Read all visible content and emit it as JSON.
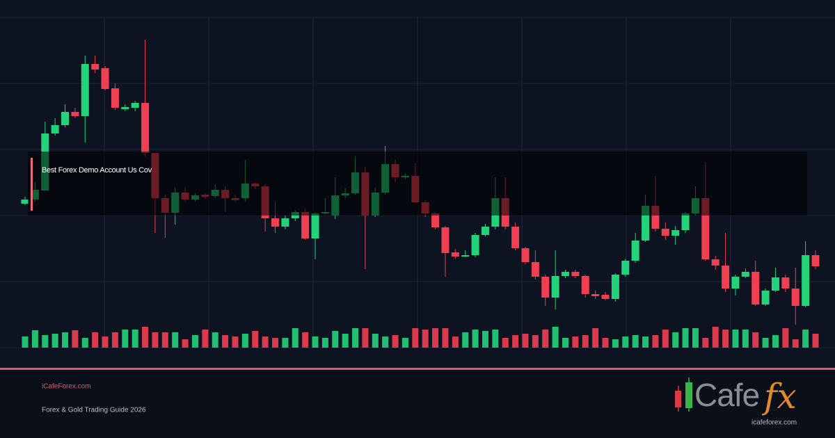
{
  "chart_data": {
    "type": "candlestick",
    "overlay_text": "Best Forex Demo Account Us Cov",
    "up_color": "#22d37a",
    "down_color": "#ef3f52",
    "ylim": [
      0,
      475
    ],
    "yticks": [
      0,
      95,
      190,
      285,
      380,
      475
    ],
    "grid": true,
    "open": [
      207,
      213,
      226,
      308,
      320,
      339,
      333,
      408,
      402,
      373,
      343,
      345,
      352,
      280,
      215,
      194,
      223,
      213,
      220,
      218,
      227,
      215,
      215,
      236,
      232,
      186,
      174,
      186,
      195,
      157,
      193,
      190,
      219,
      222,
      252,
      190,
      223,
      264,
      245,
      247,
      209,
      193,
      173,
      137,
      131,
      133,
      162,
      174,
      215,
      174,
      143,
      123,
      102,
      72,
      103,
      109,
      103,
      77,
      76,
      70,
      105,
      125,
      154,
      204,
      171,
      161,
      169,
      193,
      215,
      127,
      118,
      85,
      102,
      109,
      62,
      82,
      101,
      85,
      60,
      133
    ],
    "high": [
      217,
      238,
      325,
      330,
      350,
      345,
      420,
      420,
      405,
      380,
      350,
      355,
      443,
      280,
      220,
      230,
      230,
      222,
      222,
      235,
      232,
      220,
      270,
      238,
      235,
      210,
      190,
      198,
      200,
      195,
      215,
      245,
      230,
      275,
      260,
      230,
      290,
      270,
      250,
      265,
      212,
      195,
      175,
      142,
      140,
      165,
      178,
      245,
      245,
      180,
      145,
      140,
      105,
      140,
      112,
      112,
      105,
      82,
      80,
      107,
      128,
      165,
      220,
      247,
      180,
      175,
      195,
      232,
      267,
      132,
      165,
      105,
      114,
      125,
      85,
      115,
      105,
      115,
      153,
      140
    ],
    "low": [
      205,
      210,
      226,
      305,
      317,
      330,
      295,
      395,
      370,
      342,
      340,
      340,
      275,
      165,
      158,
      177,
      210,
      210,
      214,
      215,
      195,
      210,
      210,
      228,
      167,
      165,
      170,
      182,
      155,
      127,
      192,
      185,
      215,
      220,
      113,
      188,
      220,
      238,
      242,
      208,
      188,
      170,
      102,
      128,
      130,
      130,
      160,
      170,
      170,
      140,
      120,
      98,
      60,
      55,
      100,
      100,
      72,
      70,
      68,
      66,
      102,
      122,
      152,
      167,
      155,
      148,
      165,
      190,
      125,
      112,
      80,
      75,
      100,
      60,
      60,
      80,
      80,
      33,
      58,
      113
    ],
    "close": [
      213,
      227,
      308,
      320,
      339,
      333,
      408,
      400,
      372,
      345,
      346,
      352,
      280,
      215,
      194,
      223,
      213,
      219,
      217,
      227,
      215,
      212,
      236,
      232,
      186,
      174,
      186,
      195,
      157,
      193,
      195,
      219,
      222,
      252,
      190,
      223,
      264,
      245,
      247,
      209,
      193,
      173,
      136,
      131,
      133,
      162,
      174,
      215,
      174,
      143,
      123,
      102,
      72,
      103,
      109,
      103,
      77,
      74,
      70,
      105,
      125,
      154,
      204,
      171,
      161,
      169,
      193,
      215,
      127,
      118,
      85,
      102,
      109,
      62,
      82,
      101,
      85,
      60,
      133,
      117
    ],
    "volume": [
      16,
      25,
      18,
      20,
      22,
      25,
      14,
      22,
      16,
      22,
      26,
      26,
      30,
      22,
      22,
      22,
      12,
      18,
      26,
      22,
      18,
      16,
      20,
      24,
      16,
      14,
      14,
      28,
      22,
      16,
      14,
      24,
      20,
      28,
      28,
      20,
      16,
      18,
      14,
      28,
      26,
      28,
      28,
      16,
      22,
      26,
      24,
      26,
      14,
      18,
      20,
      18,
      26,
      30,
      14,
      16,
      18,
      28,
      14,
      12,
      16,
      18,
      16,
      18,
      26,
      22,
      28,
      28,
      14,
      30,
      26,
      26,
      26,
      22,
      14,
      18,
      28,
      12,
      26,
      20
    ]
  },
  "footer": {
    "site": "iCafeForex.com",
    "tagline": "Forex & Gold Trading Guide 2026"
  },
  "logo": {
    "wordmark": "Cafe",
    "accent": "fx",
    "url": "icafeforex.com"
  }
}
